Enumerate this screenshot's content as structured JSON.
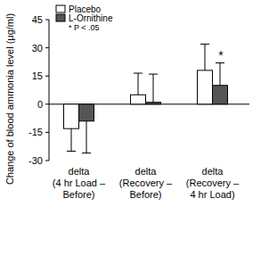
{
  "chart_data": {
    "type": "bar",
    "y_label": "Change of blood ammonia level (μg/ml)",
    "categories": [
      "delta\n(4 hr Load –\nBefore)",
      "delta\n(Recovery –\nBefore)",
      "delta\n(Recovery –\n4 hr Load)"
    ],
    "series": [
      {
        "name": "Placebo",
        "color": "#ffffff",
        "values": [
          -13,
          5,
          18
        ],
        "errors": [
          12,
          11.5,
          14
        ]
      },
      {
        "name": "L-Ornithine",
        "color": "#555555",
        "values": [
          -9,
          1,
          10
        ],
        "errors": [
          17,
          15,
          12
        ]
      }
    ],
    "ylim": [
      -30,
      45
    ],
    "yticks": [
      -30,
      -15,
      0,
      15,
      30,
      45
    ],
    "legend": "top-left",
    "legend_note": "* P < .05",
    "annotations": [
      {
        "text": "*",
        "category": 2,
        "series": 1
      }
    ]
  }
}
